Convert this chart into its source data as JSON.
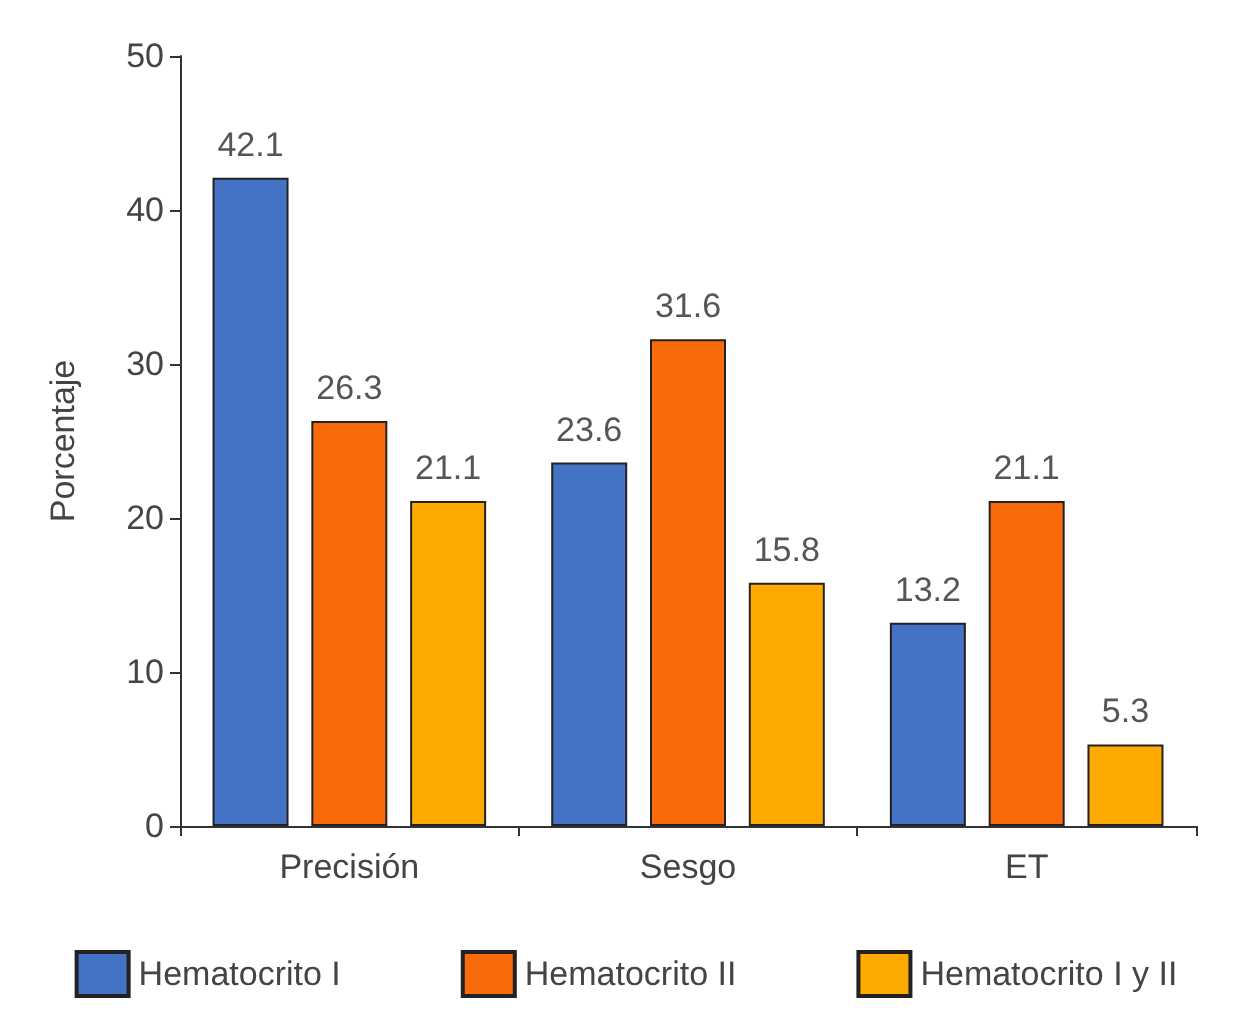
{
  "chart_data": {
    "type": "bar",
    "ylabel": "Porcentaje",
    "categories": [
      "Precisión",
      "Sesgo",
      "ET"
    ],
    "series": [
      {
        "name": "Hematocrito I",
        "color": "#4472c4",
        "values": [
          42.1,
          23.6,
          13.2
        ]
      },
      {
        "name": "Hematocrito II",
        "color": "#f96a0a",
        "values": [
          26.3,
          31.6,
          21.1
        ]
      },
      {
        "name": "Hematocrito I y II",
        "color": "#ffaa00",
        "values": [
          21.1,
          15.8,
          5.3
        ]
      }
    ],
    "ylim": [
      0,
      50
    ],
    "yticks": [
      0,
      10,
      20,
      30,
      40,
      50
    ],
    "grid": false,
    "legend": "bottom",
    "data_labels": true
  }
}
